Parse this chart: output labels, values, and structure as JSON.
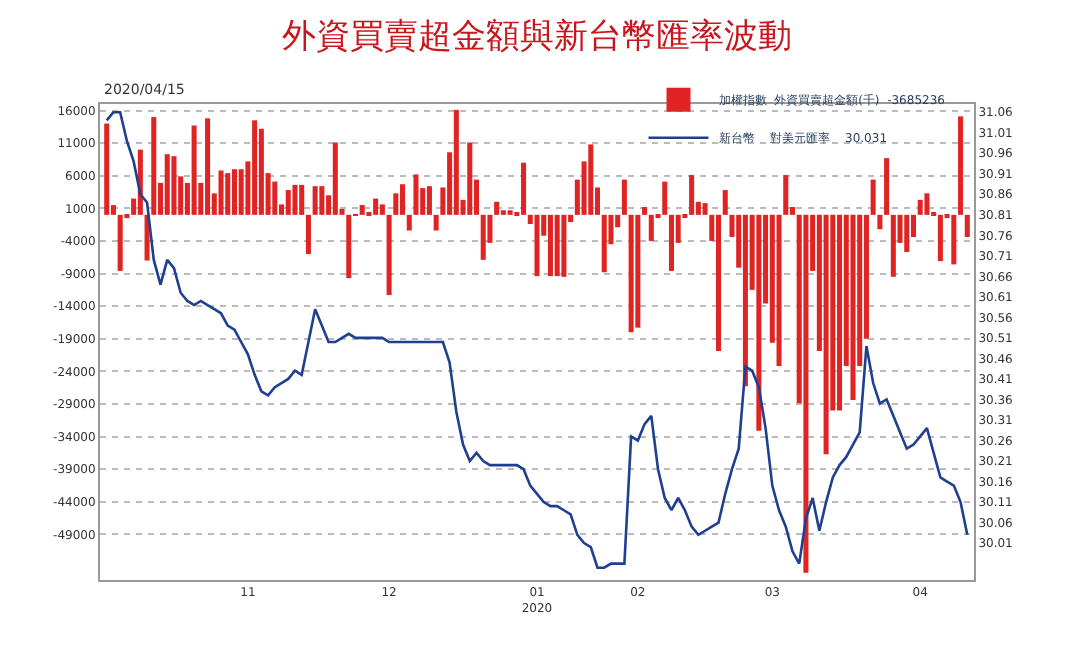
{
  "chart_data": {
    "type": "bar",
    "title": "外資買賣超金額與新台幣匯率波動",
    "annotations": [
      "2020/04/15"
    ],
    "categories": [
      null,
      null,
      null,
      null,
      null,
      null,
      null,
      null,
      null,
      null,
      null,
      null,
      null,
      null,
      null,
      null,
      null,
      null,
      null,
      null,
      null,
      "11",
      null,
      null,
      null,
      null,
      null,
      null,
      null,
      null,
      null,
      null,
      null,
      null,
      null,
      null,
      null,
      null,
      null,
      null,
      null,
      null,
      "12",
      null,
      null,
      null,
      null,
      null,
      null,
      null,
      null,
      null,
      null,
      null,
      null,
      null,
      null,
      null,
      null,
      null,
      null,
      null,
      null,
      null,
      "01\n2020",
      null,
      null,
      null,
      null,
      null,
      null,
      null,
      null,
      null,
      null,
      null,
      null,
      null,
      null,
      "02",
      null,
      null,
      null,
      null,
      null,
      null,
      null,
      null,
      null,
      null,
      null,
      null,
      null,
      null,
      null,
      null,
      null,
      null,
      null,
      "03",
      null,
      null,
      null,
      null,
      null,
      null,
      null,
      null,
      null,
      null,
      null,
      null,
      null,
      null,
      null,
      null,
      null,
      null,
      null,
      null,
      null,
      "04",
      null,
      null,
      null,
      null,
      null,
      null,
      null
    ],
    "series": [
      {
        "name": "加權指數  外資買賣超金額(千)  -3685236",
        "color": "#e02424",
        "values": [
          14000,
          1500,
          -8600,
          -500,
          2500,
          10000,
          -7000,
          15000,
          4900,
          9300,
          9000,
          5900,
          4900,
          13700,
          4900,
          14800,
          3300,
          6800,
          6400,
          7000,
          7000,
          8200,
          14500,
          13200,
          6400,
          5100,
          1600,
          3800,
          4600,
          4600,
          -6000,
          4400,
          4400,
          3000,
          11100,
          900,
          -9700,
          -100,
          1500,
          400,
          2500,
          1600,
          -12300,
          3300,
          4700,
          -2400,
          6200,
          4100,
          4400,
          -2400,
          4200,
          9600,
          16100,
          2300,
          11100,
          5400,
          -6900,
          -4300,
          2000,
          700,
          700,
          200,
          8000,
          -1400,
          -9400,
          -3200,
          -9400,
          -9400,
          -9500,
          -1100,
          5400,
          8200,
          10800,
          4200,
          -8800,
          -4500,
          -1900,
          5400,
          -18000,
          -17300,
          1200,
          -4000,
          -300,
          5100,
          -8600,
          -4300,
          -300,
          6100,
          2000,
          1800,
          -4000,
          -20900,
          3800,
          -3400,
          -8100,
          -26300,
          -11500,
          -33100,
          -13600,
          -19600,
          -23200,
          6100,
          1200,
          -28900,
          -54900,
          -8600,
          -20900,
          -36700,
          -30000,
          -30000,
          -23200,
          -28400,
          -23200,
          -19000,
          5400,
          -2200,
          8700,
          -9500,
          -4300,
          -5700,
          -3400,
          2300,
          3300,
          200,
          -7100,
          -500,
          -7600,
          15100,
          -3400
        ]
      },
      {
        "name": "新台幣    對美元匯率    30.031",
        "type": "line",
        "axis": "y2",
        "color": "#1f3f8f",
        "values": [
          31.04,
          31.06,
          31.06,
          30.99,
          30.94,
          30.86,
          30.84,
          30.7,
          30.64,
          30.7,
          30.68,
          30.62,
          30.6,
          30.59,
          30.6,
          30.59,
          30.58,
          30.57,
          30.54,
          30.53,
          30.5,
          30.47,
          30.42,
          30.38,
          30.37,
          30.39,
          30.4,
          30.41,
          30.43,
          30.42,
          30.5,
          30.58,
          30.54,
          30.5,
          30.5,
          30.51,
          30.52,
          30.51,
          30.51,
          30.51,
          30.51,
          30.51,
          30.5,
          30.5,
          30.5,
          30.5,
          30.5,
          30.5,
          30.5,
          30.5,
          30.5,
          30.45,
          30.33,
          30.25,
          30.21,
          30.23,
          30.21,
          30.2,
          30.2,
          30.2,
          30.2,
          30.2,
          30.19,
          30.15,
          30.13,
          30.11,
          30.1,
          30.1,
          30.09,
          30.08,
          30.03,
          30.01,
          30.0,
          29.95,
          29.95,
          29.96,
          29.96,
          29.96,
          30.27,
          30.26,
          30.3,
          30.32,
          30.19,
          30.12,
          30.09,
          30.12,
          30.09,
          30.05,
          30.03,
          30.04,
          30.05,
          30.06,
          30.13,
          30.19,
          30.24,
          30.44,
          30.43,
          30.39,
          30.29,
          30.15,
          30.09,
          30.05,
          29.99,
          29.96,
          30.07,
          30.12,
          30.04,
          30.11,
          30.17,
          30.2,
          30.22,
          30.25,
          30.28,
          30.49,
          30.4,
          30.35,
          30.36,
          30.32,
          30.28,
          30.24,
          30.25,
          30.27,
          30.29,
          30.23,
          30.17,
          30.16,
          30.15,
          30.11,
          30.03
        ]
      }
    ],
    "ylim": [
      -56000,
      17000
    ],
    "yticks": [
      16000,
      11000,
      6000,
      1000,
      -4000,
      -9000,
      -14000,
      -19000,
      -24000,
      -29000,
      -34000,
      -39000,
      -44000,
      -49000
    ],
    "y2lim": [
      29.92,
      31.08
    ],
    "y2ticks": [
      31.06,
      31.01,
      30.96,
      30.91,
      30.86,
      30.81,
      30.76,
      30.71,
      30.66,
      30.61,
      30.56,
      30.51,
      30.46,
      30.41,
      30.36,
      30.31,
      30.26,
      30.21,
      30.16,
      30.11,
      30.06,
      30.01
    ],
    "grid": "y",
    "legend": "top right",
    "marker": "none",
    "line_style": "solid"
  }
}
